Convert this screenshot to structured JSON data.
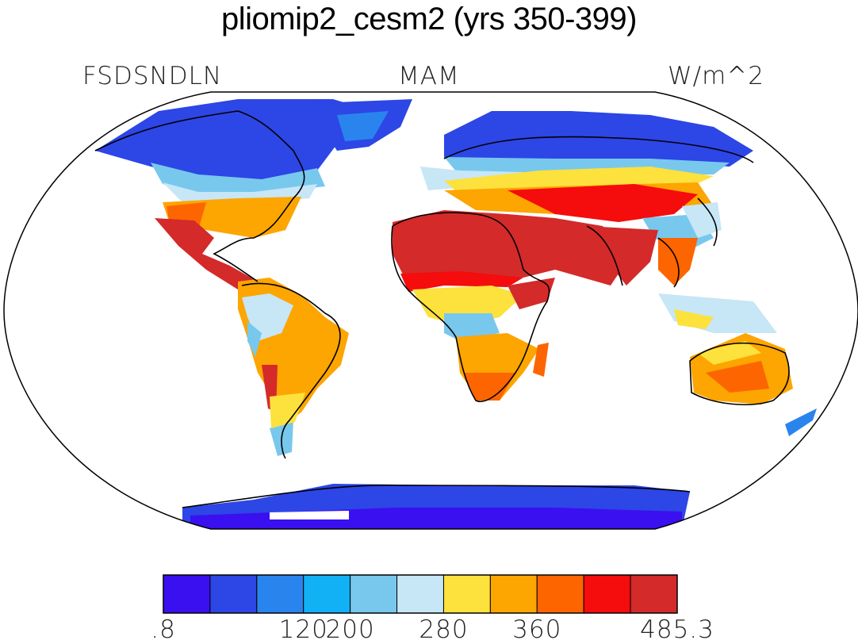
{
  "title": "pliomip2_cesm2 (yrs 350-399)",
  "left_label": "FSDSNDLN",
  "center_label": "MAM",
  "right_label": "W/m^2",
  "colorbar": {
    "colors": [
      "#3a10f0",
      "#2d46e6",
      "#2a84ee",
      "#12b1f6",
      "#78c8ee",
      "#c7e6f6",
      "#fde13c",
      "#fda501",
      "#fd6500",
      "#f50c0c",
      "#d42a2a"
    ],
    "labels": [
      ".8",
      "120",
      "200",
      "280",
      "360",
      "485.3"
    ],
    "label_positions": [
      0,
      3,
      4,
      6,
      8,
      10
    ]
  },
  "legend_colors_named": {
    "ocean": "#ffffff",
    "coastline": "#000000"
  }
}
